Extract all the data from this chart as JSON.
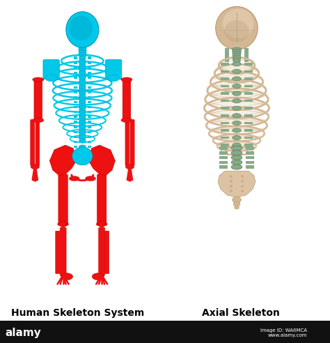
{
  "title1": "Human Skeleton System",
  "title2": "Axial Skeleton",
  "bg_color": "#ffffff",
  "cyan": "#00C8E8",
  "cyan_dark": "#0099BB",
  "red": "#EE1111",
  "red_dark": "#CC0000",
  "bone": "#D4B896",
  "bone_dark": "#B8956A",
  "bone_light": "#E8D4B8",
  "spine_green": "#88AA88",
  "spine_green_dark": "#557755",
  "title_fontsize": 10,
  "fig_width": 4.74,
  "fig_height": 4.92,
  "footer_color": "#111111",
  "footer_text": "alamy",
  "image_id": "Image ID: WA6MCA\nwww.alamy.com"
}
